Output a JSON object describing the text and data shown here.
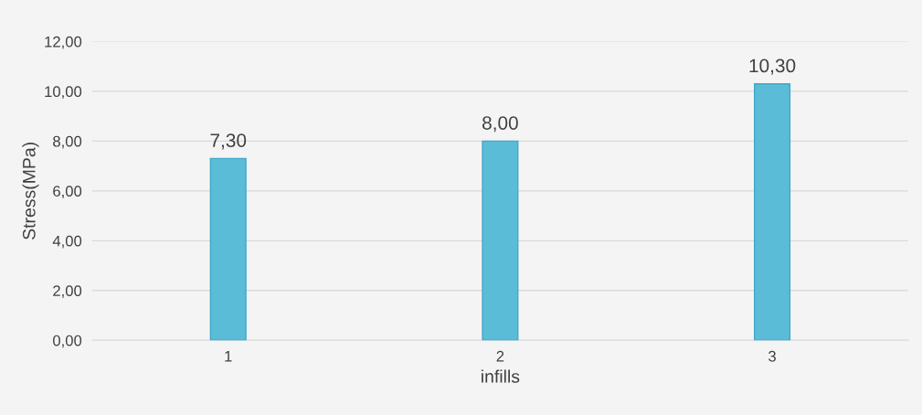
{
  "chart_data": {
    "type": "bar",
    "xlabel": "infills",
    "ylabel": "Stress(MPa)",
    "categories": [
      "1",
      "2",
      "3"
    ],
    "values": [
      7.3,
      8.0,
      10.3
    ],
    "value_labels": [
      "7,30",
      "8,00",
      "10,30"
    ],
    "color": "#5bbcd8",
    "ylim": [
      0,
      12
    ],
    "yticks": [
      {
        "value": 0,
        "label": "0,00"
      },
      {
        "value": 2,
        "label": "2,00"
      },
      {
        "value": 4,
        "label": "4,00"
      },
      {
        "value": 6,
        "label": "6,00"
      },
      {
        "value": 8,
        "label": "8,00"
      },
      {
        "value": 10,
        "label": "10,00"
      },
      {
        "value": 12,
        "label": "12,00"
      }
    ],
    "grid": "y"
  }
}
